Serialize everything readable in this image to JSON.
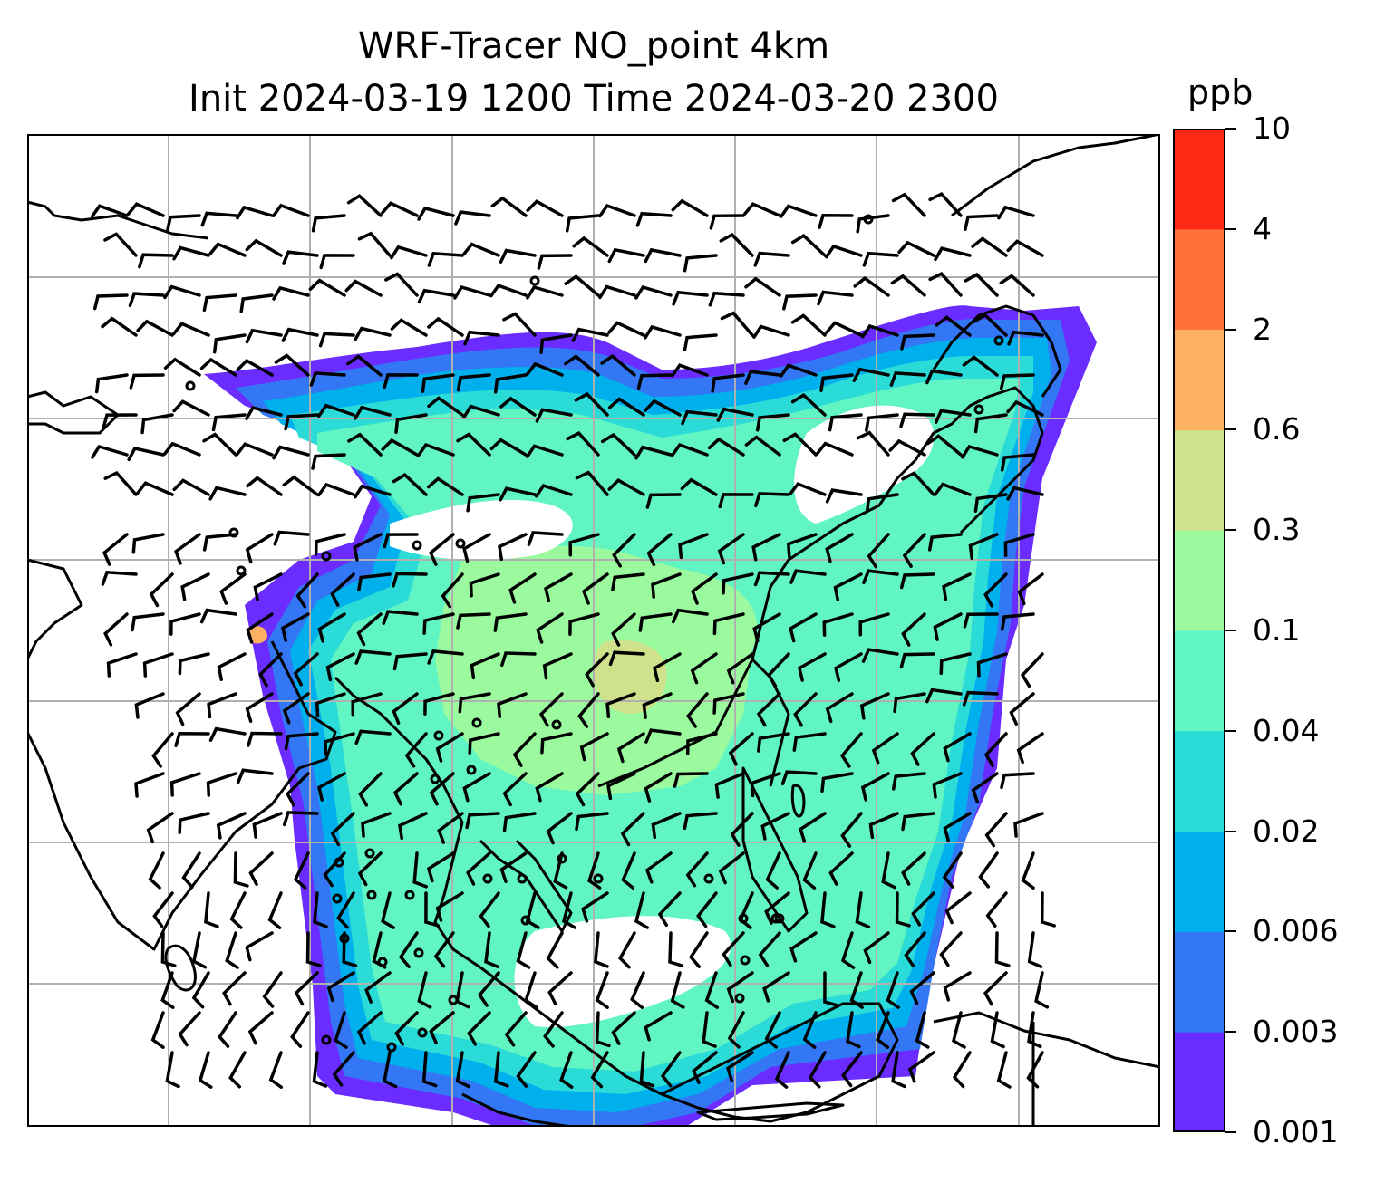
{
  "title": {
    "line1": "WRF-Tracer NO_point 4km",
    "line2": "Init 2024-03-19 1200 Time 2024-03-20 2300"
  },
  "colorbar": {
    "unit": "ppb",
    "levels": [
      "0.001",
      "0.003",
      "0.006",
      "0.02",
      "0.04",
      "0.1",
      "0.3",
      "0.6",
      "2",
      "4",
      "10"
    ],
    "colors": [
      "#6a2cff",
      "#3377f5",
      "#00b0ec",
      "#2adbd7",
      "#60f5c2",
      "#9bfa9e",
      "#cfe18a",
      "#fdb062",
      "#fe7137",
      "#ff2a15"
    ]
  },
  "map": {
    "gridline_color": "#b0b0b0",
    "coastline_color": "#000000",
    "wind_barbs": true
  }
}
